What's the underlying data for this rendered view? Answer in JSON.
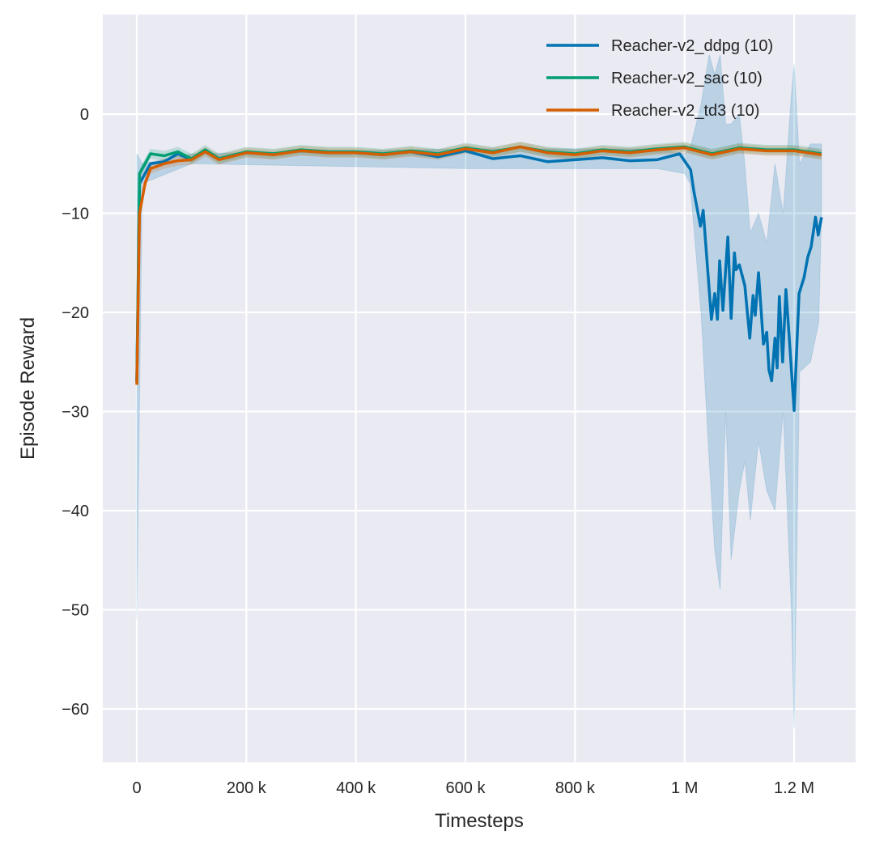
{
  "chart_data": {
    "type": "line",
    "xlabel": "Timesteps",
    "ylabel": "Episode Reward",
    "xlim": [
      -60000,
      1310000
    ],
    "ylim": [
      -65.5,
      9.5
    ],
    "x_ticks": [
      0,
      200000,
      400000,
      600000,
      800000,
      1000000,
      1200000
    ],
    "x_tick_labels": [
      "0",
      "200 k",
      "400 k",
      "600 k",
      "800 k",
      "1 M",
      "1.2 M"
    ],
    "y_ticks": [
      0,
      -10,
      -20,
      -30,
      -40,
      -50,
      -60
    ],
    "y_tick_labels": [
      "0",
      "−10",
      "−20",
      "−30",
      "−40",
      "−50",
      "−60"
    ],
    "grid": true,
    "legend_position": "top-right",
    "series": [
      {
        "name": "Reacher-v2_ddpg (10)",
        "color": "#0173b2",
        "x": [
          0,
          5000,
          15000,
          25000,
          50000,
          75000,
          100000,
          125000,
          150000,
          200000,
          250000,
          300000,
          350000,
          400000,
          450000,
          500000,
          550000,
          600000,
          650000,
          700000,
          750000,
          800000,
          850000,
          900000,
          950000,
          991000,
          1011000,
          1017000,
          1029000,
          1034000,
          1049000,
          1055000,
          1060000,
          1064000,
          1070000,
          1079000,
          1085000,
          1091000,
          1094000,
          1100000,
          1110000,
          1119000,
          1125000,
          1129000,
          1135000,
          1144000,
          1150000,
          1154000,
          1159000,
          1165000,
          1169000,
          1173000,
          1179000,
          1185000,
          1191000,
          1200000,
          1209000,
          1218000,
          1225000,
          1231000,
          1239000,
          1244000,
          1250000
        ],
        "y": [
          -27,
          -7,
          -6,
          -5,
          -4.8,
          -4,
          -4.6,
          -3.7,
          -4.5,
          -3.9,
          -4,
          -3.7,
          -3.9,
          -3.9,
          -4.1,
          -3.8,
          -4.3,
          -3.7,
          -4.5,
          -4.2,
          -4.8,
          -4.6,
          -4.4,
          -4.7,
          -4.6,
          -4,
          -5.6,
          -7.8,
          -11.3,
          -9.7,
          -20.7,
          -18.1,
          -20.7,
          -14.8,
          -19.8,
          -12.4,
          -20.6,
          -14,
          -15.7,
          -15.2,
          -17.3,
          -22.6,
          -18.3,
          -20.3,
          -16,
          -23.2,
          -22,
          -25.8,
          -26.9,
          -22.6,
          -25.6,
          -18.4,
          -25,
          -17.7,
          -22.5,
          -29.9,
          -18.1,
          -16.5,
          -14.4,
          -13.4,
          -10.4,
          -12.2,
          -10.4
        ],
        "band": {
          "x": [
            0,
            10000,
            100000,
            600000,
            950000,
            1000000,
            1010000,
            1030000,
            1045000,
            1055000,
            1065000,
            1075000,
            1085000,
            1100000,
            1110000,
            1120000,
            1135000,
            1150000,
            1165000,
            1180000,
            1195000,
            1200000,
            1210000,
            1230000,
            1245000,
            1250000
          ],
          "lower": [
            -51,
            -7,
            -5,
            -5.5,
            -5.5,
            -6,
            -7,
            -20,
            -35,
            -44,
            -48,
            -30,
            -45,
            -38,
            -35,
            -41,
            -33,
            -38,
            -40,
            -30,
            -50,
            -62,
            -26,
            -25,
            -21,
            -10
          ],
          "upper": [
            -4,
            -5,
            -4,
            -3.5,
            -3.5,
            -4,
            -3.5,
            1,
            6,
            4,
            6,
            -1,
            -1,
            0,
            -5,
            -12,
            -10,
            -13,
            -5,
            -10,
            2,
            5,
            -5,
            -3,
            -3,
            -3
          ]
        }
      },
      {
        "name": "Reacher-v2_sac (10)",
        "color": "#029e73",
        "x": [
          0,
          5000,
          15000,
          25000,
          50000,
          75000,
          100000,
          125000,
          150000,
          200000,
          250000,
          300000,
          350000,
          400000,
          450000,
          500000,
          550000,
          600000,
          650000,
          700000,
          750000,
          800000,
          850000,
          900000,
          950000,
          1000000,
          1050000,
          1100000,
          1150000,
          1200000,
          1250000
        ],
        "y": [
          -27,
          -6,
          -5,
          -4,
          -4.2,
          -3.8,
          -4.5,
          -3.6,
          -4.5,
          -3.8,
          -4,
          -3.6,
          -3.8,
          -3.8,
          -4,
          -3.7,
          -4,
          -3.4,
          -3.8,
          -3.3,
          -3.8,
          -4,
          -3.6,
          -3.8,
          -3.5,
          -3.3,
          -4,
          -3.4,
          -3.6,
          -3.6,
          -4
        ]
      },
      {
        "name": "Reacher-v2_td3 (10)",
        "color": "#d55e00",
        "x": [
          0,
          5000,
          15000,
          25000,
          50000,
          75000,
          100000,
          125000,
          150000,
          200000,
          250000,
          300000,
          350000,
          400000,
          450000,
          500000,
          550000,
          600000,
          650000,
          700000,
          750000,
          800000,
          850000,
          900000,
          950000,
          1000000,
          1050000,
          1100000,
          1150000,
          1200000,
          1250000
        ],
        "y": [
          -27.3,
          -10,
          -7,
          -5.5,
          -5,
          -4.7,
          -4.6,
          -3.8,
          -4.6,
          -3.9,
          -4.1,
          -3.7,
          -3.9,
          -3.9,
          -4.1,
          -3.8,
          -4.1,
          -3.5,
          -3.9,
          -3.3,
          -3.9,
          -4.1,
          -3.7,
          -3.9,
          -3.6,
          -3.4,
          -4.1,
          -3.5,
          -3.7,
          -3.7,
          -4.1
        ]
      }
    ]
  }
}
